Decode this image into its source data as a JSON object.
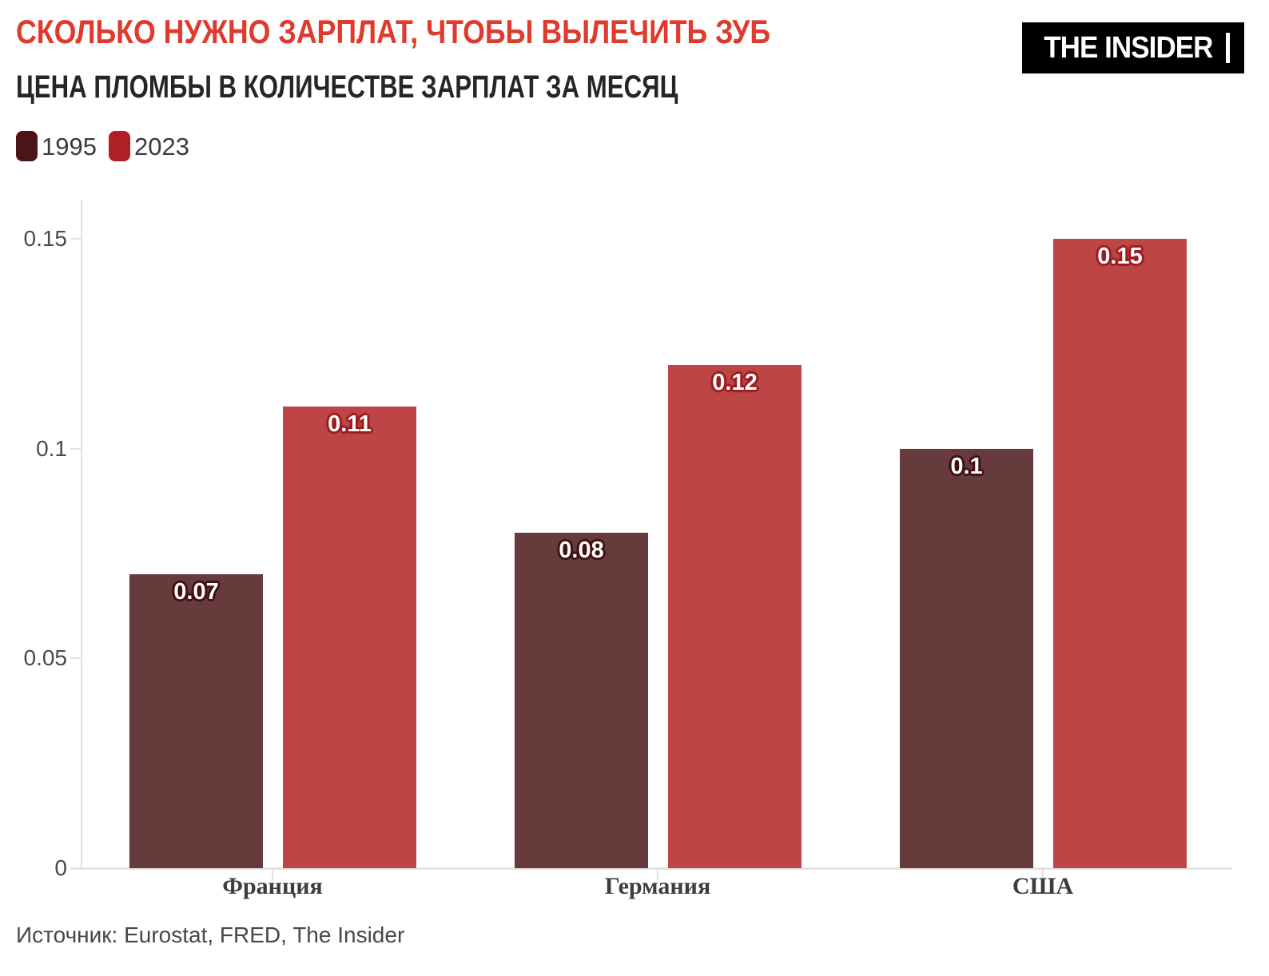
{
  "header": {
    "title": "СКОЛЬКО НУЖНО ЗАРПЛАТ, ЧТОБЫ ВЫЛЕЧИТЬ ЗУБ",
    "subtitle": "ЦЕНА ПЛОМБЫ В КОЛИЧЕСТВЕ ЗАРПЛАТ ЗА МЕСЯЦ",
    "logo_text": "THE INSIDER"
  },
  "legend": {
    "items": [
      {
        "label": "1995",
        "color": "#4c1414"
      },
      {
        "label": "2023",
        "color": "#b01f23"
      }
    ]
  },
  "chart_data": {
    "type": "bar",
    "categories": [
      "Франция",
      "Германия",
      "США"
    ],
    "series": [
      {
        "name": "1995",
        "values": [
          0.07,
          0.08,
          0.1
        ],
        "labels": [
          "0.07",
          "0.08",
          "0.1"
        ],
        "bar_color": "#673b3b",
        "label_outline": "#401010"
      },
      {
        "name": "2023",
        "values": [
          0.11,
          0.12,
          0.15
        ],
        "labels": [
          "0.11",
          "0.12",
          "0.15"
        ],
        "bar_color": "#bd4545",
        "label_outline": "#9c1b1f"
      }
    ],
    "title": "СКОЛЬКО НУЖНО ЗАРПЛАТ, ЧТОБЫ ВЫЛЕЧИТЬ ЗУБ",
    "subtitle": "ЦЕНА ПЛОМБЫ В КОЛИЧЕСТВЕ ЗАРПЛАТ ЗА МЕСЯЦ",
    "xlabel": "",
    "ylabel": "",
    "ylim": [
      0,
      0.158
    ],
    "yticks": [
      {
        "value": 0,
        "label": "0"
      },
      {
        "value": 0.05,
        "label": "0.05"
      },
      {
        "value": 0.1,
        "label": "0.1"
      },
      {
        "value": 0.15,
        "label": "0.15"
      }
    ],
    "grid": false,
    "legend_position": "top-left"
  },
  "footer": {
    "source": "Источник: Eurostat, FRED, The Insider"
  },
  "colors": {
    "background": "#ffffff",
    "title": "#e0392e",
    "subtitle": "#262626",
    "axis": "#e2e2e2",
    "y_tick_label": "#4a4a4a",
    "category_label": "#3d3d3d",
    "legend_label": "#3a3a3a",
    "source": "#474747",
    "logo_background": "#000000",
    "logo_text": "#ffffff",
    "value_label": "#ffffff"
  }
}
